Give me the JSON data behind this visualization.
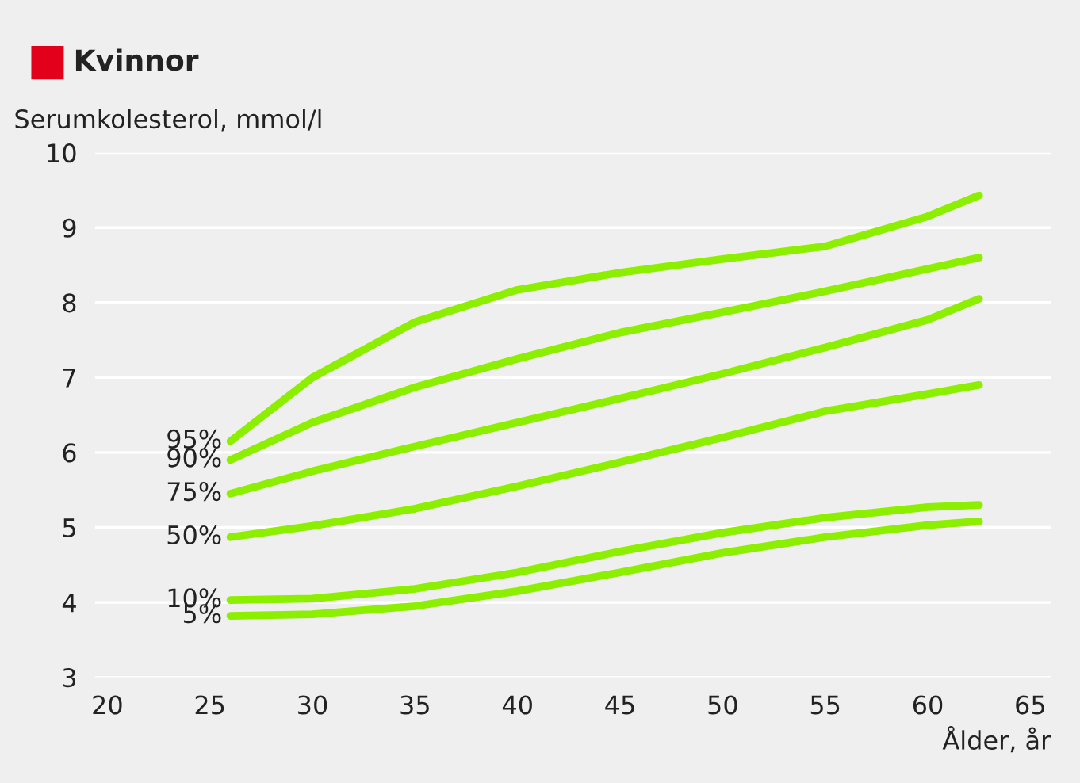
{
  "chart_data": {
    "type": "line",
    "title": "Kvinnor",
    "ylabel": "Serumkolesterol, mmol/l",
    "xlabel": "Ålder, år",
    "xlim": [
      19.4,
      66
    ],
    "xticks": [
      20,
      25,
      30,
      35,
      40,
      45,
      50,
      55,
      60,
      65
    ],
    "ylim": [
      3,
      10
    ],
    "yticks": [
      3,
      4,
      5,
      6,
      7,
      8,
      9,
      10
    ],
    "grid": "y",
    "legend": false,
    "marker": "none",
    "line_style": "solid",
    "x": [
      26,
      30,
      35,
      40,
      45,
      50,
      55,
      60,
      62.5
    ],
    "series": [
      {
        "name": "95%",
        "color": "#8cef00",
        "values": [
          6.15,
          7.0,
          7.74,
          8.17,
          8.4,
          8.58,
          8.75,
          9.15,
          9.43
        ]
      },
      {
        "name": "90%",
        "color": "#8cef00",
        "values": [
          5.9,
          6.4,
          6.87,
          7.25,
          7.6,
          7.87,
          8.15,
          8.45,
          8.6
        ]
      },
      {
        "name": "75%",
        "color": "#8cef00",
        "values": [
          5.45,
          5.75,
          6.08,
          6.4,
          6.72,
          7.05,
          7.4,
          7.77,
          8.05
        ]
      },
      {
        "name": "50%",
        "color": "#8cef00",
        "values": [
          4.87,
          5.02,
          5.25,
          5.55,
          5.87,
          6.2,
          6.55,
          6.78,
          6.9
        ]
      },
      {
        "name": "10%",
        "color": "#8cef00",
        "values": [
          4.03,
          4.05,
          4.18,
          4.4,
          4.68,
          4.93,
          5.13,
          5.27,
          5.3
        ]
      },
      {
        "name": "5%",
        "color": "#8cef00",
        "values": [
          3.82,
          3.84,
          3.95,
          4.15,
          4.4,
          4.66,
          4.87,
          5.03,
          5.08
        ]
      }
    ]
  }
}
